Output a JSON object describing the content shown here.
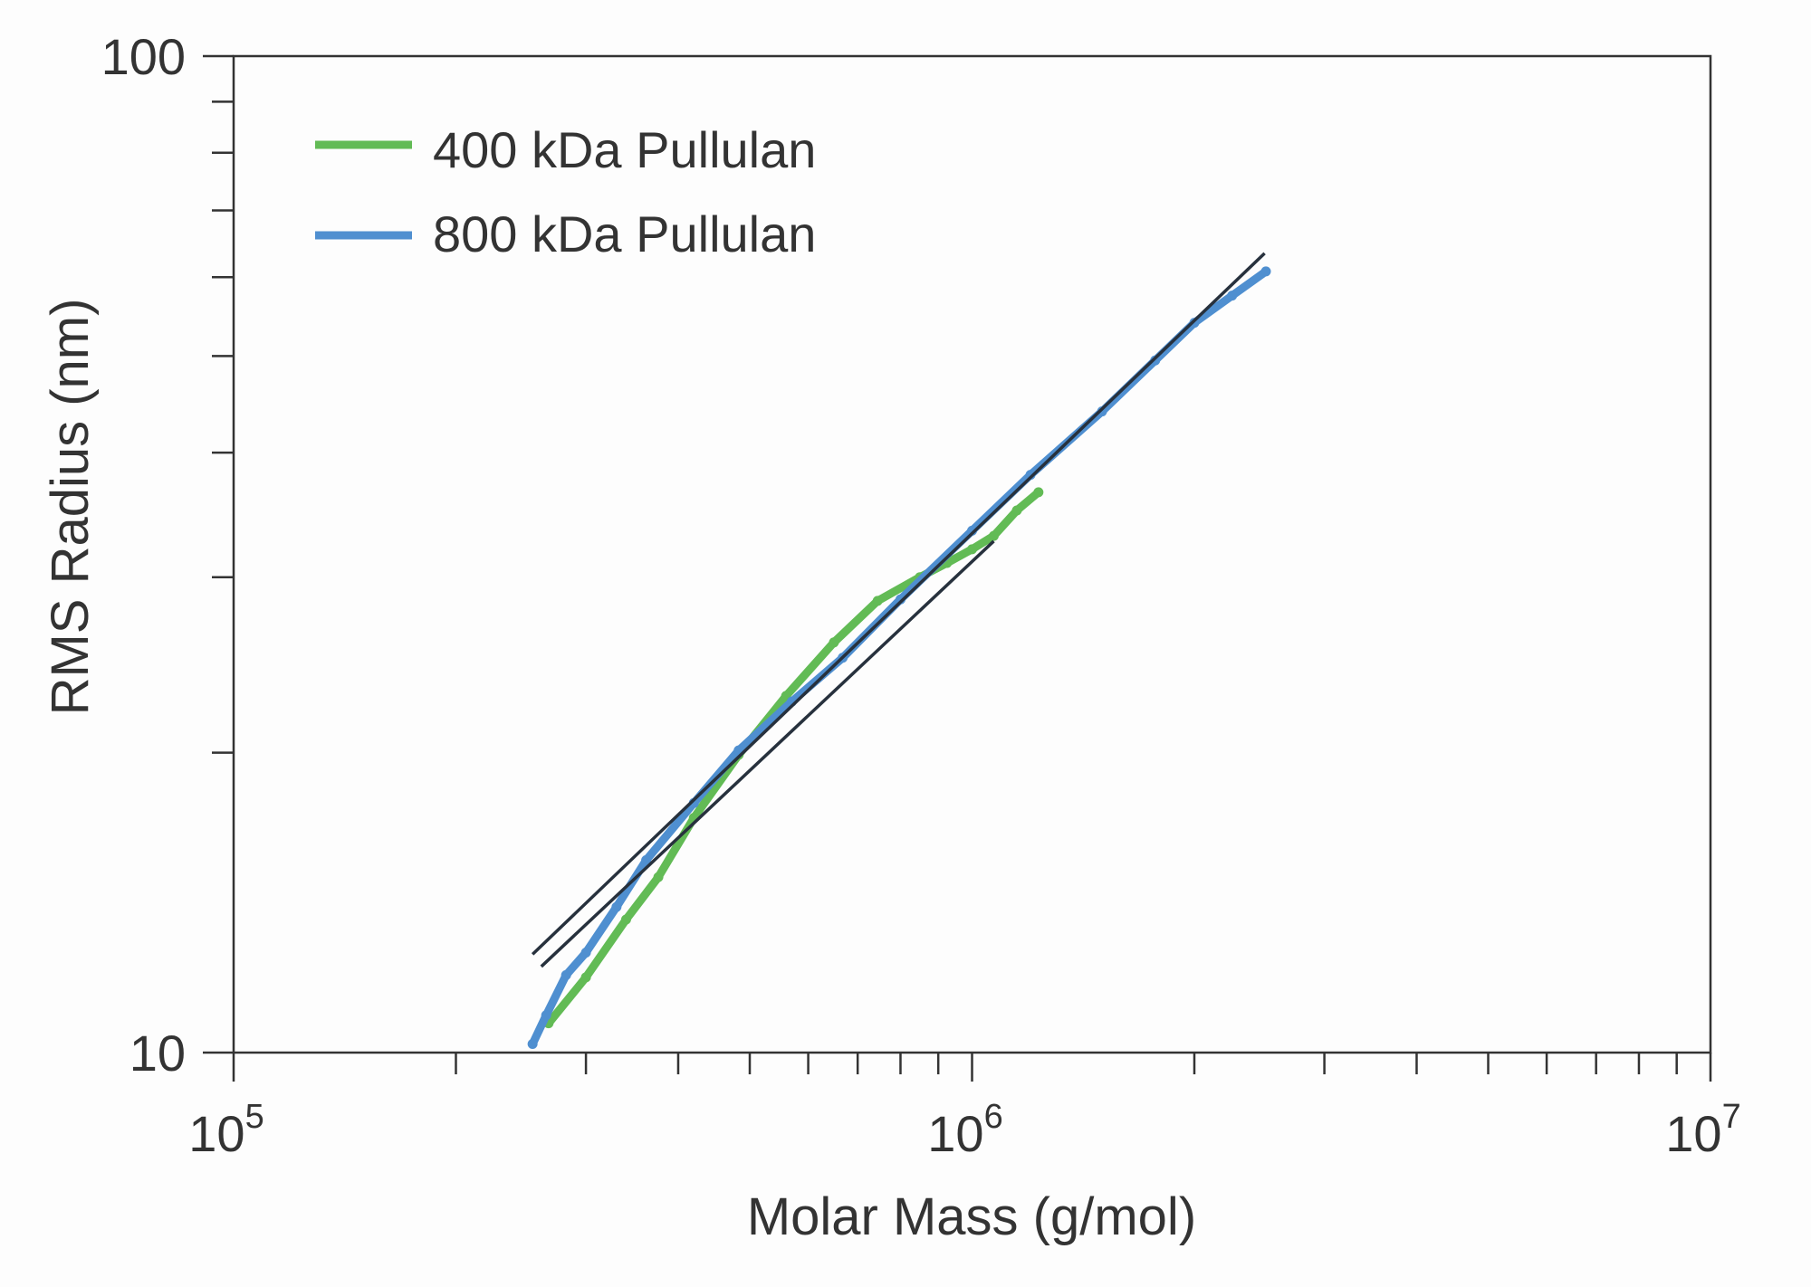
{
  "chart_data": {
    "type": "scatter",
    "xlabel": "Molar Mass (g/mol)",
    "ylabel": "RMS Radius (nm)",
    "xscale": "log",
    "yscale": "log",
    "xlim": [
      100000,
      10000000
    ],
    "ylim": [
      10,
      100
    ],
    "x_tick_labels": [
      {
        "base": "10",
        "exp": "5",
        "value": 100000
      },
      {
        "base": "10",
        "exp": "6",
        "value": 1000000
      },
      {
        "base": "10",
        "exp": "7",
        "value": 10000000
      }
    ],
    "y_tick_labels": [
      {
        "text": "10",
        "value": 10
      },
      {
        "text": "100",
        "value": 100
      }
    ],
    "grid": false,
    "legend_position": "top-left",
    "series": [
      {
        "name": "400 kDa Pullulan",
        "color": "#62bb55",
        "x": [
          267000,
          300000,
          340000,
          376000,
          420000,
          483000,
          560000,
          650000,
          745000,
          850000,
          925000,
          1000000,
          1070000,
          1150000,
          1230000
        ],
        "y": [
          10.7,
          11.9,
          13.6,
          15.0,
          17.2,
          19.9,
          22.8,
          25.8,
          28.4,
          30.0,
          31.0,
          32.0,
          33.0,
          35.0,
          36.5
        ]
      },
      {
        "name": "800 kDa Pullulan",
        "color": "#4f8fd0",
        "x": [
          254000,
          265000,
          282000,
          300000,
          330000,
          362000,
          420000,
          483000,
          570000,
          668000,
          800000,
          1000000,
          1200000,
          1500000,
          1770000,
          2000000,
          2250000,
          2500000
        ],
        "y": [
          10.2,
          10.9,
          11.96,
          12.6,
          14.0,
          15.6,
          17.8,
          20.1,
          22.5,
          24.9,
          28.5,
          33.4,
          38.0,
          44.0,
          49.5,
          54.0,
          57.5,
          60.8
        ]
      }
    ],
    "fit_lines": [
      {
        "color": "#27313d",
        "x": [
          254000,
          2490000
        ],
        "y": [
          12.55,
          63.4
        ]
      },
      {
        "color": "#27313d",
        "x": [
          261000,
          1070000
        ],
        "y": [
          12.2,
          32.6
        ]
      }
    ]
  }
}
